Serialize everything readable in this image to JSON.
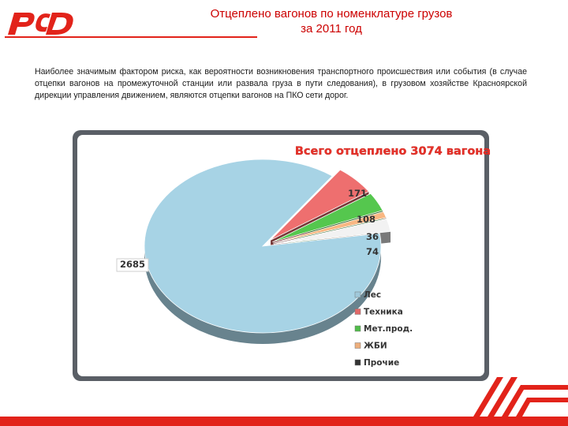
{
  "header": {
    "title_line1": "Отцеплено вагонов по номенклатуре грузов",
    "title_line2": "за 2011 год"
  },
  "body": {
    "paragraph": "Наиболее значимым фактором риска, как вероятности возникновения транспортного происшествия или события (в случае отцепки вагонов на промежуточной станции или развала груза в пути следования), в грузовом хозяйстве Красноярской дирекции управления движением, являются отцепки вагонов на ПКО сети дорог."
  },
  "colors": {
    "brand_red": "#e2231a",
    "title_red": "#cc0000"
  },
  "chart_data": {
    "type": "pie",
    "title": "Всего отцеплено 3074 вагона",
    "legend_position": "right",
    "slices": [
      {
        "name": "Лес",
        "value": 2685,
        "color": "#a7d3e5",
        "label": "2685"
      },
      {
        "name": "Техника",
        "value": 171,
        "color": "#ee6f6f",
        "label": "171"
      },
      {
        "name": "Мет.прод.",
        "value": 108,
        "color": "#55c74e",
        "label": "108"
      },
      {
        "name": "ЖБИ",
        "value": 36,
        "color": "#f9b783",
        "label": "36"
      },
      {
        "name": "Прочие",
        "value": 74,
        "color": "#f2f2f2",
        "label": "74"
      }
    ]
  }
}
